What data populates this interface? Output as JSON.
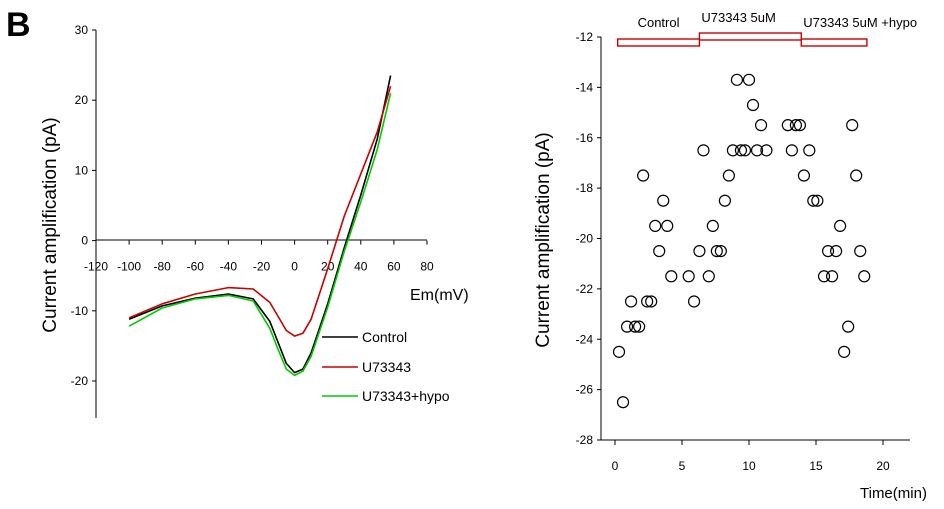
{
  "panel_label": "B",
  "chart_data": [
    {
      "type": "line",
      "title": "",
      "xlabel": "Em(mV)",
      "ylabel": "Current amplification (pA)",
      "xlim": [
        -120,
        80
      ],
      "ylim": [
        -25,
        30
      ],
      "xticks": [
        -120,
        -100,
        -80,
        -60,
        -40,
        -20,
        0,
        20,
        40,
        60,
        80
      ],
      "yticks": [
        -20,
        -10,
        0,
        10,
        20,
        30
      ],
      "legend": "center-right",
      "grid": false,
      "series": [
        {
          "name": "Control",
          "color": "#000000",
          "x": [
            -100,
            -80,
            -60,
            -40,
            -25,
            -15,
            -10,
            -5,
            0,
            5,
            10,
            20,
            30,
            40,
            50,
            58
          ],
          "y": [
            -11.2,
            -9.3,
            -8.2,
            -7.6,
            -8.3,
            -11.5,
            -14.5,
            -17.5,
            -18.8,
            -18.3,
            -16,
            -9,
            -1,
            6.5,
            14.5,
            23.5
          ]
        },
        {
          "name": "U73343",
          "color": "#cc0000",
          "x": [
            -100,
            -80,
            -60,
            -40,
            -25,
            -15,
            -10,
            -5,
            0,
            5,
            10,
            20,
            30,
            40,
            50,
            58
          ],
          "y": [
            -11,
            -9,
            -7.6,
            -6.7,
            -6.9,
            -8.8,
            -10.8,
            -12.8,
            -13.6,
            -13.2,
            -11.2,
            -4,
            3.5,
            9.5,
            15.5,
            22
          ]
        },
        {
          "name": "U73343+hypo",
          "color": "#00cc00",
          "x": [
            -100,
            -80,
            -60,
            -40,
            -25,
            -15,
            -10,
            -5,
            0,
            5,
            10,
            20,
            30,
            40,
            50,
            58
          ],
          "y": [
            -12.2,
            -9.6,
            -8.3,
            -7.8,
            -8.6,
            -12.5,
            -15.5,
            -18.3,
            -19.2,
            -18.6,
            -16.5,
            -9.5,
            -1.5,
            5.5,
            13,
            21
          ]
        }
      ]
    },
    {
      "type": "scatter",
      "title": "",
      "xlabel": "Time(min)",
      "ylabel": "Current amplification (pA)",
      "xlim": [
        0,
        20
      ],
      "ylim": [
        -28,
        -12
      ],
      "xticks": [
        0,
        5,
        10,
        15,
        20
      ],
      "yticks": [
        -28,
        -26,
        -24,
        -22,
        -20,
        -18,
        -16,
        -14,
        -12
      ],
      "grid": false,
      "annotations": [
        {
          "label": "Control",
          "x_start": 0.2,
          "x_end": 6.3,
          "color": "#cc0000"
        },
        {
          "label": "U73343 5uM",
          "x_start": 6.3,
          "x_end": 13.9,
          "color": "#cc0000"
        },
        {
          "label": "U73343 5uM +hypo",
          "x_start": 13.9,
          "x_end": 18.8,
          "color": "#cc0000"
        }
      ],
      "series": [
        {
          "x": [
            0.3,
            0.6,
            0.9,
            1.2,
            1.5,
            1.8,
            2.1,
            2.4,
            2.7,
            3.0,
            3.3,
            3.6,
            3.9,
            4.2,
            5.5,
            5.9,
            6.3,
            6.6,
            7.0,
            7.3,
            7.6,
            7.9,
            8.2,
            8.5,
            8.8,
            9.1,
            9.4,
            9.7,
            10.0,
            10.3,
            10.6,
            10.9,
            11.3,
            12.9,
            13.2,
            13.5,
            13.8,
            14.1,
            14.5,
            14.8,
            15.1,
            15.6,
            15.9,
            16.2,
            16.5,
            16.8,
            17.1,
            17.4,
            17.7,
            18.0,
            18.3,
            18.6
          ],
          "y": [
            -24.5,
            -26.5,
            -23.5,
            -22.5,
            -23.5,
            -23.5,
            -17.5,
            -22.5,
            -22.5,
            -19.5,
            -20.5,
            -18.5,
            -19.5,
            -21.5,
            -21.5,
            -22.5,
            -20.5,
            -16.5,
            -21.5,
            -19.5,
            -20.5,
            -20.5,
            -18.5,
            -17.5,
            -16.5,
            -13.7,
            -16.5,
            -16.5,
            -13.7,
            -14.7,
            -16.5,
            -15.5,
            -16.5,
            -15.5,
            -16.5,
            -15.5,
            -15.5,
            -17.5,
            -16.5,
            -18.5,
            -18.5,
            -21.5,
            -20.5,
            -21.5,
            -20.5,
            -19.5,
            -24.5,
            -23.5,
            -15.5,
            -17.5,
            -20.5,
            -21.5
          ]
        }
      ]
    }
  ]
}
